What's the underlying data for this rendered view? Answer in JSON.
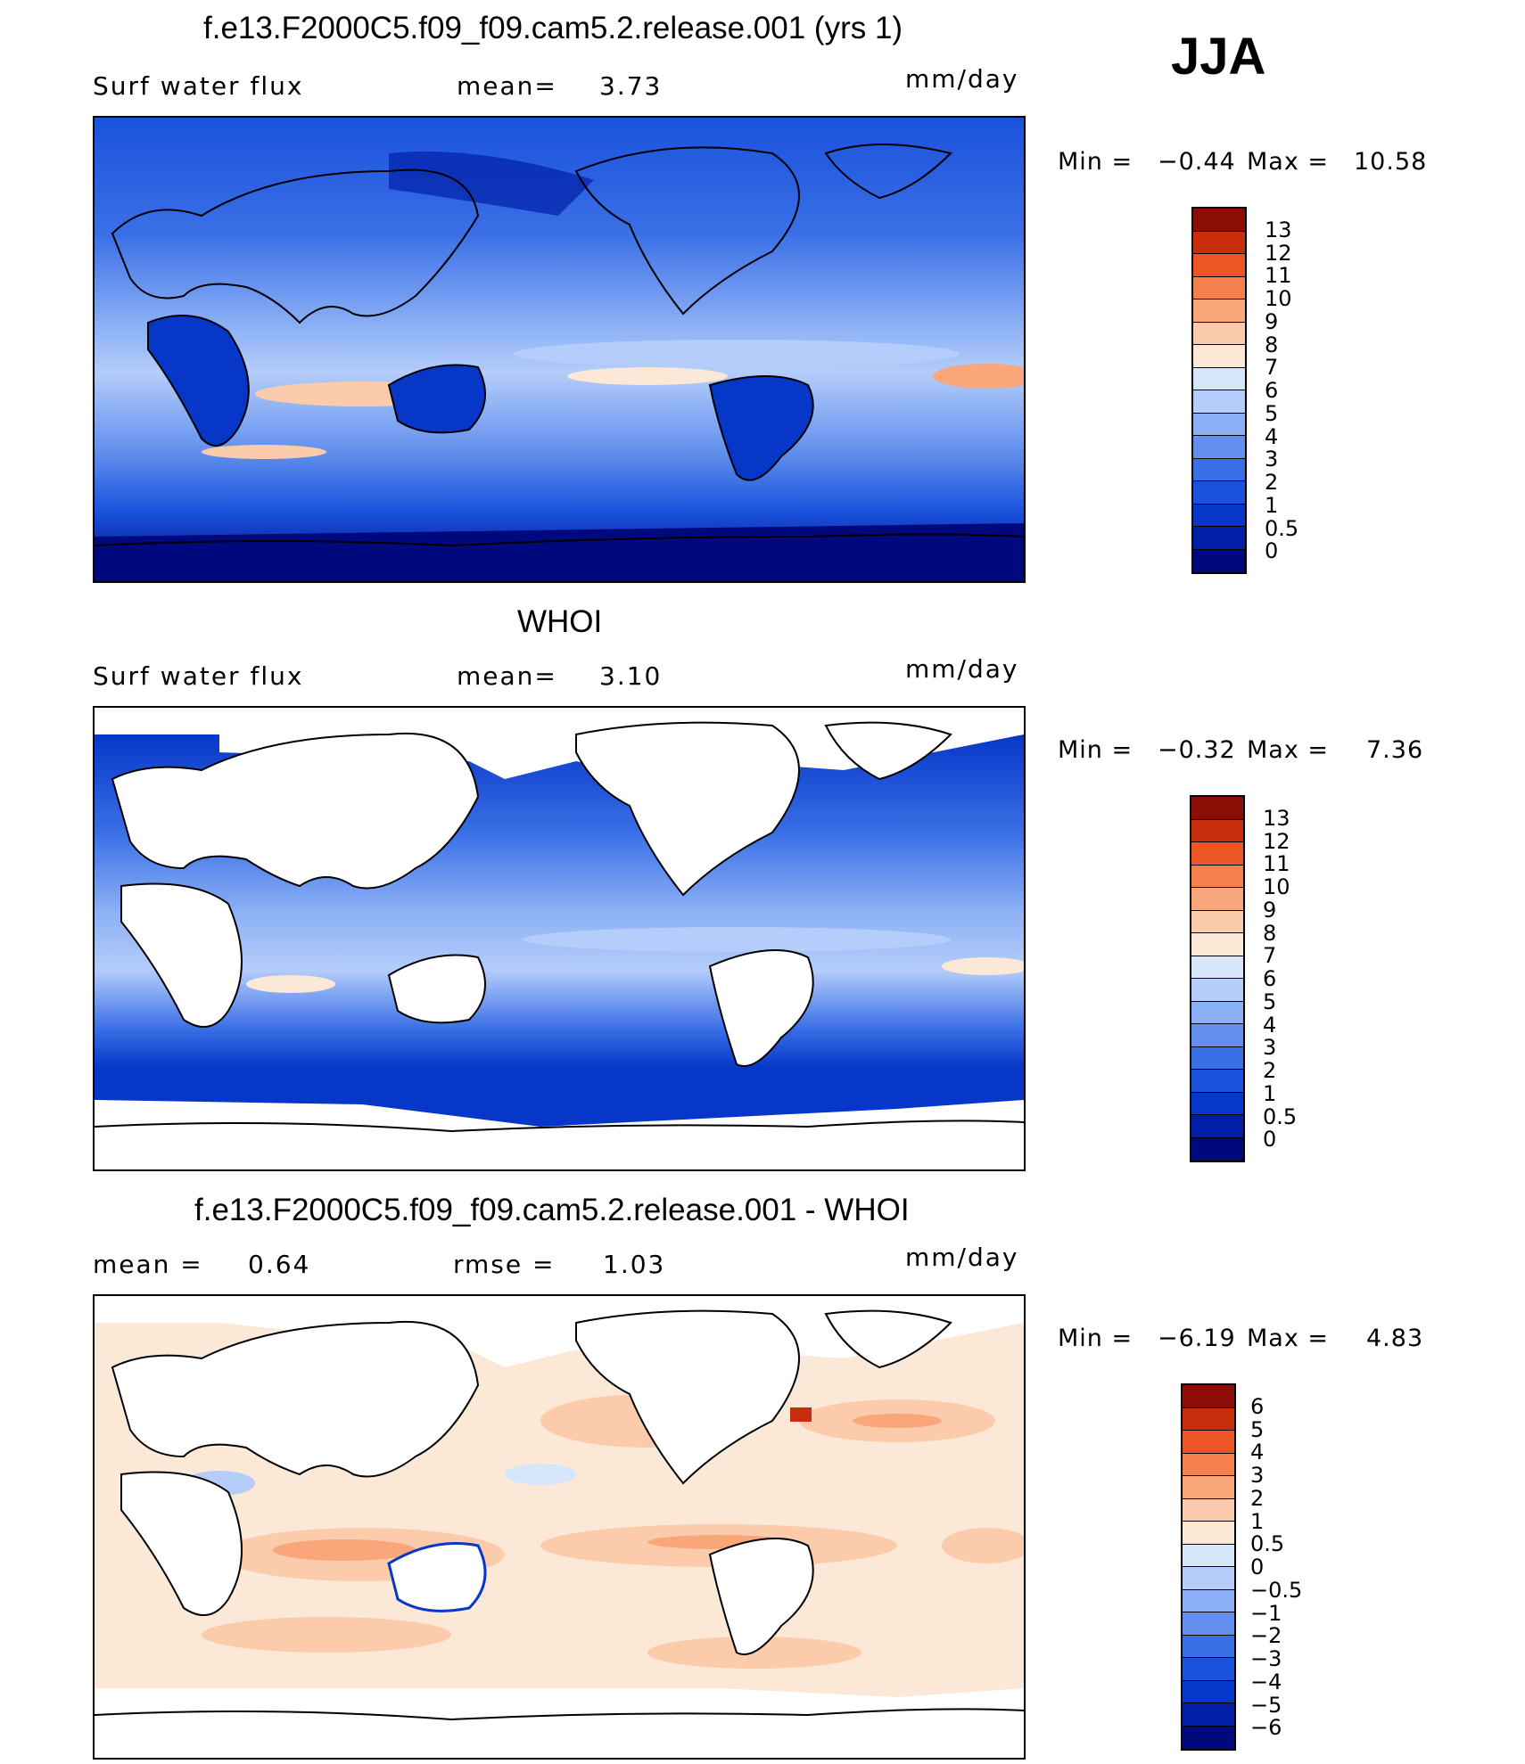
{
  "season": "JJA",
  "panels": [
    {
      "title": "f.e13.F2000C5.f09_f09.cam5.2.release.001 (yrs 1)",
      "left_label": "Surf  water  flux",
      "mean_label": "mean=",
      "mean_value": "3.73",
      "units": "mm/day",
      "min_label": "Min  =",
      "min_value": "−0.44",
      "max_label": "Max  =",
      "max_value": "10.58",
      "colorbar_labels": [
        "13",
        "12",
        "11",
        "10",
        "9",
        "8",
        "7",
        "6",
        "5",
        "4",
        "3",
        "2",
        "1",
        "0.5",
        "0"
      ]
    },
    {
      "title": "WHOI",
      "left_label": "Surf  water  flux",
      "mean_label": "mean=",
      "mean_value": "3.10",
      "units": "mm/day",
      "min_label": "Min  =",
      "min_value": "−0.32",
      "max_label": "Max  =",
      "max_value": "7.36",
      "colorbar_labels": [
        "13",
        "12",
        "11",
        "10",
        "9",
        "8",
        "7",
        "6",
        "5",
        "4",
        "3",
        "2",
        "1",
        "0.5",
        "0"
      ]
    },
    {
      "title": "f.e13.F2000C5.f09_f09.cam5.2.release.001 - WHOI",
      "left_label": "mean  =",
      "mean_label": "rmse  =",
      "mean_value": "1.03",
      "left_value": "0.64",
      "units": "mm/day",
      "min_label": "Min  =",
      "min_value": "−6.19",
      "max_label": "Max  =",
      "max_value": "4.83",
      "colorbar_labels": [
        "6",
        "5",
        "4",
        "3",
        "2",
        "1",
        "0.5",
        "0",
        "−0.5",
        "−1",
        "−2",
        "−3",
        "−4",
        "−5",
        "−6"
      ]
    }
  ],
  "colors": {
    "seq": [
      "#00087e",
      "#001fa6",
      "#0637c8",
      "#1a52dc",
      "#3a6fe6",
      "#6390ee",
      "#8cb0f5",
      "#b4cdfa",
      "#d6e6fb",
      "#fbe8d6",
      "#fbcbac",
      "#f8a67a",
      "#f57f4d",
      "#ec5524",
      "#c92e0c",
      "#8b0d04"
    ],
    "div": [
      "#00087e",
      "#001fa6",
      "#0637c8",
      "#1a52dc",
      "#3a6fe6",
      "#6390ee",
      "#8cb0f5",
      "#b4cdfa",
      "#d6e6fb",
      "#fbe8d6",
      "#fbcbac",
      "#f8a67a",
      "#f57f4d",
      "#ec5524",
      "#c92e0c",
      "#8b0d04"
    ]
  }
}
